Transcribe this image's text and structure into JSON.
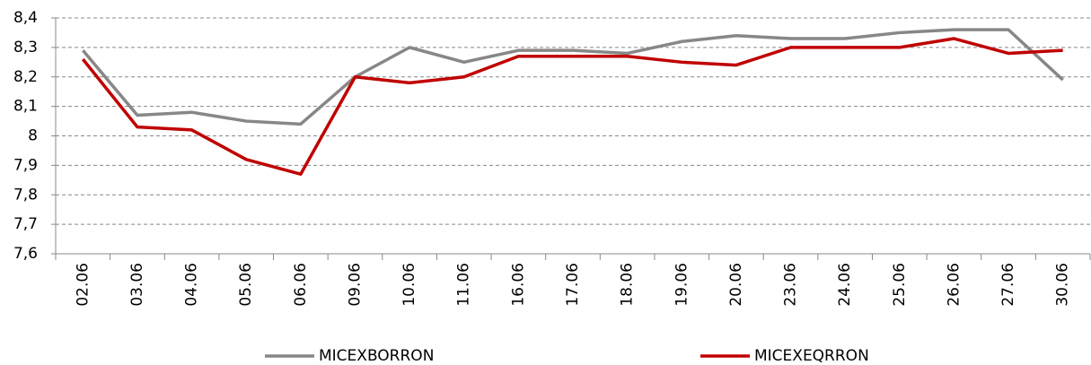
{
  "chart_data": {
    "type": "line",
    "categories": [
      "02.06",
      "03.06",
      "04.06",
      "05.06",
      "06.06",
      "09.06",
      "10.06",
      "11.06",
      "16.06",
      "17.06",
      "18.06",
      "19.06",
      "20.06",
      "23.06",
      "24.06",
      "25.06",
      "26.06",
      "27.06",
      "30.06"
    ],
    "series": [
      {
        "name": "MICEXBORRON",
        "color": "#878787",
        "values": [
          8.29,
          8.07,
          8.08,
          8.05,
          8.04,
          8.2,
          8.3,
          8.25,
          8.29,
          8.29,
          8.28,
          8.32,
          8.34,
          8.33,
          8.33,
          8.35,
          8.36,
          8.36,
          8.19
        ]
      },
      {
        "name": "MICEXEQRRON",
        "color": "#c00000",
        "values": [
          8.26,
          8.03,
          8.02,
          7.92,
          7.87,
          8.2,
          8.18,
          8.2,
          8.27,
          8.27,
          8.27,
          8.25,
          8.24,
          8.3,
          8.3,
          8.3,
          8.33,
          8.28,
          8.29
        ]
      }
    ],
    "ylim": [
      7.6,
      8.4
    ],
    "yticks": [
      {
        "value": 7.6,
        "label": "7,6"
      },
      {
        "value": 7.7,
        "label": "7,7"
      },
      {
        "value": 7.8,
        "label": "7,8"
      },
      {
        "value": 7.9,
        "label": "7,9"
      },
      8,
      {
        "value": 8.1,
        "label": "8,1"
      },
      {
        "value": 8.2,
        "label": "8,2"
      },
      {
        "value": 8.3,
        "label": "8,3"
      },
      {
        "value": 8.4,
        "label": "8,4"
      }
    ],
    "grid": true,
    "legend": "bottom"
  }
}
